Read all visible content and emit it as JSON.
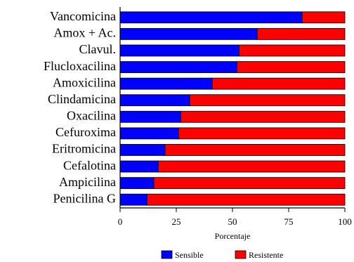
{
  "chart_data": {
    "type": "bar",
    "orientation": "horizontal",
    "stacked": true,
    "categories": [
      "Vancomicina",
      "Amox + Ac.",
      "Clavul.",
      "Flucloxacilina",
      "Amoxicilina",
      "Clindamicina",
      "Oxacilina",
      "Cefuroxima",
      "Eritromicina",
      "Cefalotina",
      "Ampicilina",
      "Penicilina G"
    ],
    "series": [
      {
        "name": "Sensible",
        "color": "#0000ff",
        "values": [
          81,
          61,
          53,
          52,
          41,
          31,
          27,
          26,
          20,
          17,
          15,
          12
        ]
      },
      {
        "name": "Resistente",
        "color": "#ff0000",
        "values": [
          19,
          39,
          47,
          48,
          59,
          69,
          73,
          74,
          80,
          83,
          85,
          88
        ]
      }
    ],
    "xlabel": "Porcentaje",
    "ylabel": "",
    "xlim": [
      0,
      100
    ],
    "xticks": [
      "0",
      "25",
      "50",
      "75",
      "100"
    ],
    "grid": false,
    "legend_position": "bottom"
  }
}
